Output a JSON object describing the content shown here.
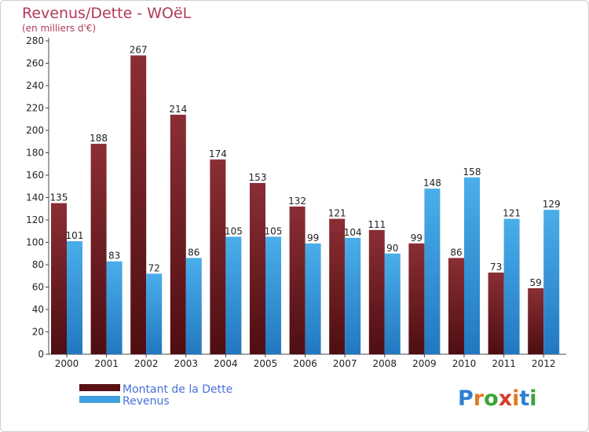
{
  "chart_data": {
    "type": "bar",
    "title": "Revenus/Dette - WOëL",
    "subtitle": "(en milliers d'€)",
    "categories": [
      "2000",
      "2001",
      "2002",
      "2003",
      "2004",
      "2005",
      "2006",
      "2007",
      "2008",
      "2009",
      "2010",
      "2011",
      "2012"
    ],
    "series": [
      {
        "name": "Montant de la Dette",
        "color": "#7a1e24",
        "values": [
          135,
          188,
          267,
          214,
          174,
          153,
          132,
          121,
          111,
          99,
          86,
          73,
          59
        ]
      },
      {
        "name": "Revenus",
        "color": "#3f9fe0",
        "values": [
          101,
          83,
          72,
          86,
          105,
          105,
          99,
          104,
          90,
          148,
          158,
          121,
          129
        ]
      }
    ],
    "ylim": [
      0,
      280
    ],
    "yticks": [
      0,
      20,
      40,
      60,
      80,
      100,
      120,
      140,
      160,
      180,
      200,
      220,
      240,
      260,
      280
    ],
    "grid": false,
    "legend": "bottom-left"
  },
  "logo": {
    "text": "Proxiti",
    "letter_colors": [
      "#2e7fd0",
      "#e07a1f",
      "#3aa336",
      "#d63a2a",
      "#e07a1f",
      "#2e7fd0",
      "#3aa336"
    ]
  }
}
